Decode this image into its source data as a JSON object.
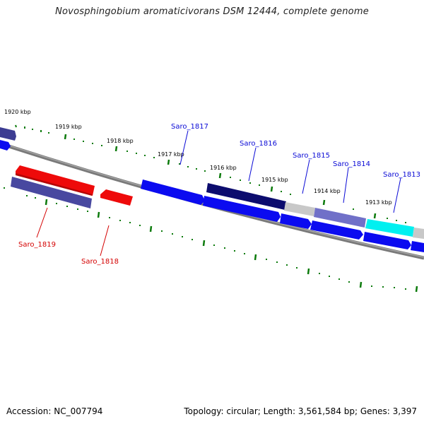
{
  "title": "Novosphingobium aromaticivorans DSM 12444, complete genome",
  "footer": {
    "accession": "Accession: NC_007794",
    "summary": "Topology: circular; Length: 3,561,584 bp; Genes: 3,397"
  },
  "colors": {
    "backbone": "#7a7a7a",
    "tick": "#0b7a0b",
    "forward_gene": "#0b0bf0",
    "reverse_gene": "#ee0a0a",
    "forward_label": "#0a0ad6",
    "reverse_label": "#d40000"
  },
  "scale_labels": [
    "1920 kbp",
    "1919 kbp",
    "1918 kbp",
    "1917 kbp",
    "1916 kbp",
    "1915 kbp",
    "1914 kbp",
    "1913 kbp"
  ],
  "genes": {
    "forward": [
      "Saro_1817",
      "Saro_1816",
      "Saro_1815",
      "Saro_1814",
      "Saro_1813"
    ],
    "reverse": [
      "Saro_1819",
      "Saro_1818"
    ]
  }
}
